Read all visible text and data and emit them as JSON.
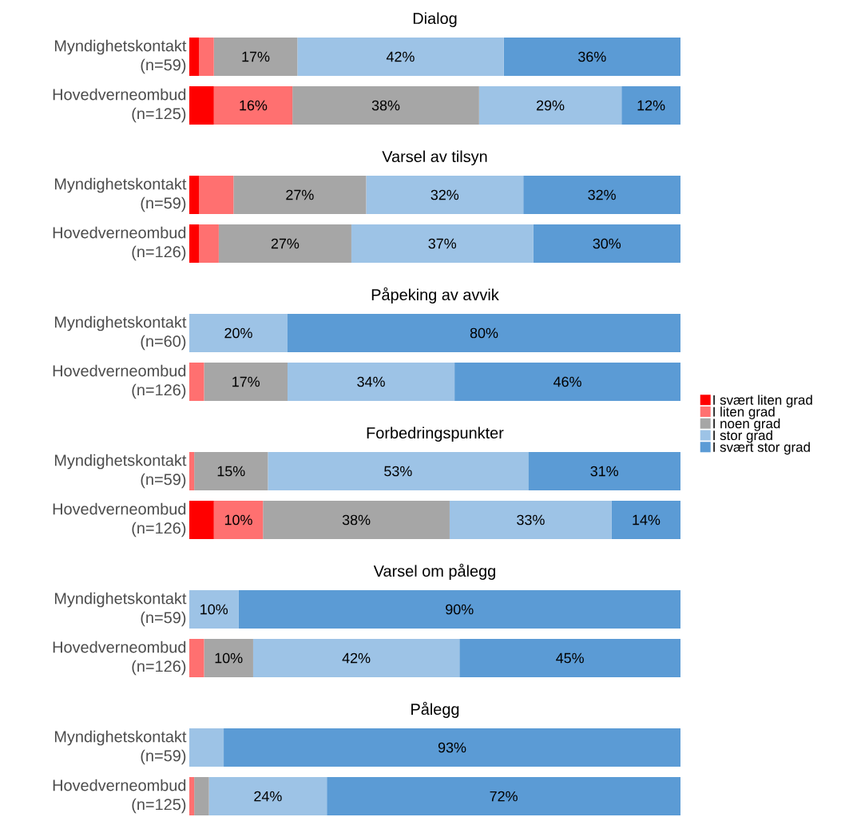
{
  "chart_data": [
    {
      "type": "bar",
      "title": "Dialog",
      "categories": [
        "Myndighetskontakt (n=59)",
        "Hovedverneombud (n=125)"
      ],
      "orientation": "horizontal",
      "stacked": true,
      "series": [
        {
          "color": "#ff0000",
          "values": [
            2,
            5
          ],
          "value_labels": [
            null,
            null
          ]
        },
        {
          "color": "#ff7070",
          "values": [
            3,
            16
          ],
          "value_labels": [
            null,
            "16%"
          ]
        },
        {
          "color": "#a6a6a6",
          "values": [
            17,
            38
          ],
          "value_labels": [
            "17%",
            "38%"
          ]
        },
        {
          "color": "#9dc3e6",
          "values": [
            42,
            29
          ],
          "value_labels": [
            "42%",
            "29%"
          ]
        },
        {
          "color": "#5b9bd5",
          "values": [
            36,
            12
          ],
          "value_labels": [
            "36%",
            "12%"
          ]
        }
      ]
    },
    {
      "type": "bar",
      "title": "Varsel av tilsyn",
      "categories": [
        "Myndighetskontakt (n=59)",
        "Hovedverneombud (n=126)"
      ],
      "orientation": "horizontal",
      "stacked": true,
      "series": [
        {
          "color": "#ff0000",
          "values": [
            2,
            2
          ],
          "value_labels": [
            null,
            null
          ]
        },
        {
          "color": "#ff7070",
          "values": [
            7,
            4
          ],
          "value_labels": [
            null,
            null
          ]
        },
        {
          "color": "#a6a6a6",
          "values": [
            27,
            27
          ],
          "value_labels": [
            "27%",
            "27%"
          ]
        },
        {
          "color": "#9dc3e6",
          "values": [
            32,
            37
          ],
          "value_labels": [
            "32%",
            "37%"
          ]
        },
        {
          "color": "#5b9bd5",
          "values": [
            32,
            30
          ],
          "value_labels": [
            "32%",
            "30%"
          ]
        }
      ]
    },
    {
      "type": "bar",
      "title": "Påpeking av avvik",
      "categories": [
        "Myndighetskontakt (n=60)",
        "Hovedverneombud (n=126)"
      ],
      "orientation": "horizontal",
      "stacked": true,
      "legend": "right",
      "series": [
        {
          "name": "I svært liten grad",
          "color": "#ff0000",
          "values": [
            0,
            0
          ],
          "value_labels": [
            null,
            null
          ]
        },
        {
          "name": "I liten grad",
          "color": "#ff7070",
          "values": [
            0,
            3
          ],
          "value_labels": [
            null,
            null
          ]
        },
        {
          "name": "I noen grad",
          "color": "#a6a6a6",
          "values": [
            0,
            17
          ],
          "value_labels": [
            null,
            "17%"
          ]
        },
        {
          "name": "I stor grad",
          "color": "#9dc3e6",
          "values": [
            20,
            34
          ],
          "value_labels": [
            "20%",
            "34%"
          ]
        },
        {
          "name": "I svært stor grad",
          "color": "#5b9bd5",
          "values": [
            80,
            46
          ],
          "value_labels": [
            "80%",
            "46%"
          ]
        }
      ]
    },
    {
      "type": "bar",
      "title": "Forbedringspunkter",
      "categories": [
        "Myndighetskontakt (n=59)",
        "Hovedverneombud (n=126)"
      ],
      "orientation": "horizontal",
      "stacked": true,
      "series": [
        {
          "color": "#ff0000",
          "values": [
            0,
            5
          ],
          "value_labels": [
            null,
            null
          ]
        },
        {
          "color": "#ff7070",
          "values": [
            1,
            10
          ],
          "value_labels": [
            null,
            "10%"
          ]
        },
        {
          "color": "#a6a6a6",
          "values": [
            15,
            38
          ],
          "value_labels": [
            "15%",
            "38%"
          ]
        },
        {
          "color": "#9dc3e6",
          "values": [
            53,
            33
          ],
          "value_labels": [
            "53%",
            "33%"
          ]
        },
        {
          "color": "#5b9bd5",
          "values": [
            31,
            14
          ],
          "value_labels": [
            "31%",
            "14%"
          ]
        }
      ]
    },
    {
      "type": "bar",
      "title": "Varsel om pålegg",
      "categories": [
        "Myndighetskontakt (n=59)",
        "Hovedverneombud (n=126)"
      ],
      "orientation": "horizontal",
      "stacked": true,
      "series": [
        {
          "color": "#ff0000",
          "values": [
            0,
            0
          ],
          "value_labels": [
            null,
            null
          ]
        },
        {
          "color": "#ff7070",
          "values": [
            0,
            3
          ],
          "value_labels": [
            null,
            null
          ]
        },
        {
          "color": "#a6a6a6",
          "values": [
            0,
            10
          ],
          "value_labels": [
            null,
            "10%"
          ]
        },
        {
          "color": "#9dc3e6",
          "values": [
            10,
            42
          ],
          "value_labels": [
            "10%",
            "42%"
          ]
        },
        {
          "color": "#5b9bd5",
          "values": [
            90,
            45
          ],
          "value_labels": [
            "90%",
            "45%"
          ]
        }
      ]
    },
    {
      "type": "bar",
      "title": "Pålegg",
      "categories": [
        "Myndighetskontakt (n=59)",
        "Hovedverneombud (n=125)"
      ],
      "orientation": "horizontal",
      "stacked": true,
      "series": [
        {
          "color": "#ff0000",
          "values": [
            0,
            0
          ],
          "value_labels": [
            null,
            null
          ]
        },
        {
          "color": "#ff7070",
          "values": [
            0,
            1
          ],
          "value_labels": [
            null,
            null
          ]
        },
        {
          "color": "#a6a6a6",
          "values": [
            0,
            3
          ],
          "value_labels": [
            null,
            null
          ]
        },
        {
          "color": "#9dc3e6",
          "values": [
            7,
            24
          ],
          "value_labels": [
            null,
            "24%"
          ]
        },
        {
          "color": "#5b9bd5",
          "values": [
            93,
            72
          ],
          "value_labels": [
            "93%",
            "72%"
          ]
        }
      ]
    }
  ]
}
